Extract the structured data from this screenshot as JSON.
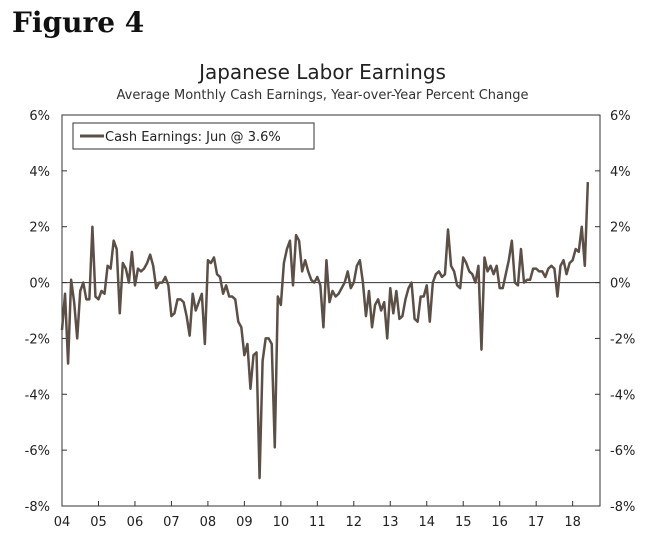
{
  "figure_label": "Figure 4",
  "chart_data": {
    "type": "line",
    "title": "Japanese Labor Earnings",
    "subtitle": "Average Monthly Cash Earnings, Year-over-Year Percent Change",
    "xlabel": "",
    "ylabel": "",
    "ylim": [
      -8,
      6
    ],
    "xlim": [
      2004,
      2018.75
    ],
    "grid": false,
    "zero_line": true,
    "legend": {
      "position": "top-left",
      "label": "Cash Earnings: Jun @ 3.6%"
    },
    "line_color": "#5b4f46",
    "x_tick_labels": [
      "04",
      "05",
      "06",
      "07",
      "08",
      "09",
      "10",
      "11",
      "12",
      "13",
      "14",
      "15",
      "16",
      "17",
      "18"
    ],
    "y_tick_labels_left": [
      "6%",
      "4%",
      "2%",
      "0%",
      "-2%",
      "-4%",
      "-6%",
      "-8%"
    ],
    "y_tick_labels_right": [
      "6%",
      "4%",
      "2%",
      "0%",
      "-2%",
      "-4%",
      "-6%",
      "-8%"
    ],
    "series": [
      {
        "name": "Cash Earnings",
        "start": "2004-01",
        "frequency": "monthly",
        "values": [
          -1.7,
          -0.4,
          -2.9,
          0.1,
          -0.7,
          -2.0,
          -0.3,
          0.0,
          -0.6,
          -0.6,
          2.0,
          -0.5,
          -0.6,
          -0.3,
          -0.4,
          0.6,
          0.5,
          1.5,
          1.2,
          -1.1,
          0.7,
          0.5,
          0.0,
          1.1,
          -0.1,
          0.5,
          0.4,
          0.5,
          0.7,
          1.0,
          0.6,
          -0.2,
          0.0,
          0.0,
          0.2,
          -0.1,
          -1.2,
          -1.1,
          -0.6,
          -0.6,
          -0.7,
          -1.2,
          -1.9,
          -0.4,
          -1.0,
          -0.7,
          -0.4,
          -2.2,
          0.8,
          0.7,
          0.9,
          0.3,
          0.2,
          -0.4,
          -0.1,
          -0.5,
          -0.5,
          -0.6,
          -1.4,
          -1.6,
          -2.6,
          -2.2,
          -3.8,
          -2.6,
          -2.5,
          -7.0,
          -2.8,
          -2.0,
          -2.0,
          -2.2,
          -5.9,
          -0.5,
          -0.8,
          0.7,
          1.2,
          1.5,
          -0.1,
          1.7,
          1.5,
          0.4,
          0.8,
          0.4,
          0.1,
          0.0,
          0.2,
          -0.1,
          -1.6,
          0.8,
          -0.7,
          -0.3,
          -0.5,
          -0.4,
          -0.2,
          0.0,
          0.4,
          -0.2,
          0.0,
          0.6,
          0.8,
          0.0,
          -1.2,
          -0.3,
          -1.6,
          -0.8,
          -0.6,
          -1.0,
          -0.7,
          -2.0,
          -0.2,
          -1.1,
          -0.3,
          -1.3,
          -1.2,
          -0.6,
          -0.2,
          0.0,
          -1.3,
          -1.4,
          -0.5,
          -0.5,
          -0.1,
          -1.4,
          0.0,
          0.3,
          0.4,
          0.2,
          0.3,
          1.9,
          0.6,
          0.4,
          -0.1,
          -0.2,
          0.9,
          0.7,
          0.4,
          0.3,
          0.0,
          0.6,
          -2.4,
          0.9,
          0.4,
          0.6,
          0.3,
          0.6,
          -0.2,
          -0.2,
          0.3,
          0.8,
          1.5,
          0.0,
          -0.1,
          1.2,
          0.0,
          0.1,
          0.1,
          0.5,
          0.5,
          0.4,
          0.4,
          0.2,
          0.5,
          0.6,
          0.5,
          -0.5,
          0.6,
          0.8,
          0.3,
          0.7,
          0.8,
          1.2,
          1.1,
          2.0,
          0.6,
          3.6
        ]
      }
    ]
  }
}
